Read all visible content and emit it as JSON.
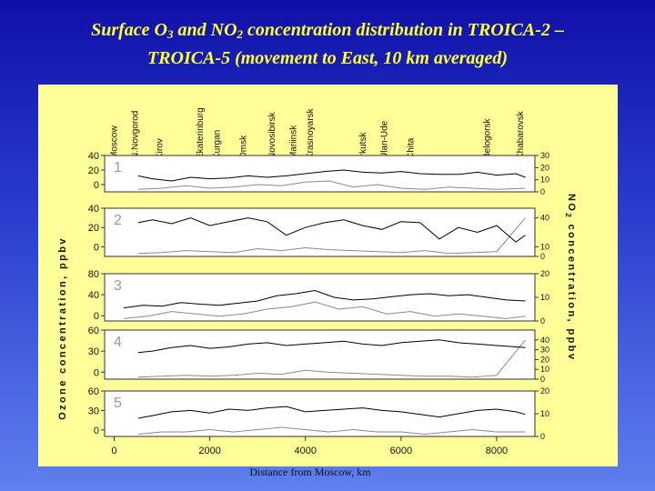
{
  "title": {
    "line1_pre": "Surface O",
    "line1_sub1": "3",
    "line1_mid": " and NO",
    "line1_sub2": "2",
    "line1_post": " concentration distribution in TROICA-2 –",
    "line2": "TROICA-5 (movement to East, 10 km averaged)"
  },
  "chart_data": {
    "type": "line",
    "xlabel": "Distance from Moscow, km",
    "ylabel_left": "Ozone concentration, ppbv",
    "ylabel_right_pre": "NO",
    "ylabel_right_sub": "2",
    "ylabel_right_post": " concentration, ppbv",
    "xlim": [
      -200,
      8800
    ],
    "xticks": [
      0,
      2000,
      4000,
      6000,
      8000
    ],
    "cities": [
      {
        "name": "Moscow",
        "x": 0
      },
      {
        "name": "N.Novgorod",
        "x": 440
      },
      {
        "name": "Kirov",
        "x": 950
      },
      {
        "name": "Ekaterinburg",
        "x": 1800
      },
      {
        "name": "Kurgan",
        "x": 2150
      },
      {
        "name": "Omsk",
        "x": 2700
      },
      {
        "name": "Novosibirsk",
        "x": 3300
      },
      {
        "name": "Mariinsk",
        "x": 3750
      },
      {
        "name": "Krasnoyarsk",
        "x": 4100
      },
      {
        "name": "Irkutsk",
        "x": 5200
      },
      {
        "name": "Ulan-Ude",
        "x": 5650
      },
      {
        "name": "Chita",
        "x": 6200
      },
      {
        "name": "Belogorsk",
        "x": 7800
      },
      {
        "name": "Khabarovsk",
        "x": 8500
      }
    ],
    "panels": [
      {
        "label": "1",
        "ozone_ylim": [
          -10,
          40
        ],
        "ozone_ticks": [
          0,
          20,
          40
        ],
        "no2_ylim": [
          0,
          30
        ],
        "no2_ticks": [
          0,
          10,
          20,
          30
        ],
        "ozone_x": [
          500,
          800,
          1200,
          1600,
          2000,
          2400,
          2800,
          3200,
          3600,
          4000,
          4400,
          4800,
          5200,
          5600,
          6000,
          6400,
          6800,
          7200,
          7600,
          8000,
          8400,
          8600
        ],
        "ozone": [
          12,
          8,
          5,
          10,
          8,
          9,
          12,
          10,
          12,
          15,
          18,
          20,
          17,
          16,
          18,
          15,
          14,
          14,
          17,
          13,
          15,
          10
        ],
        "no2_x": [
          500,
          1000,
          1500,
          2000,
          2500,
          3000,
          3500,
          4000,
          4500,
          5000,
          5500,
          6000,
          6500,
          7000,
          7500,
          8000,
          8600
        ],
        "no2": [
          2,
          3,
          5,
          3,
          4,
          6,
          5,
          8,
          9,
          4,
          6,
          3,
          2,
          4,
          3,
          2,
          3
        ]
      },
      {
        "label": "2",
        "ozone_ylim": [
          -10,
          40
        ],
        "ozone_ticks": [
          0,
          20,
          40
        ],
        "no2_ylim": [
          0,
          50
        ],
        "no2_ticks": [
          0,
          10,
          40
        ],
        "ozone_x": [
          500,
          800,
          1200,
          1600,
          2000,
          2400,
          2800,
          3200,
          3600,
          4000,
          4400,
          4800,
          5200,
          5600,
          6000,
          6400,
          6800,
          7200,
          7600,
          8000,
          8400,
          8600
        ],
        "ozone": [
          25,
          28,
          24,
          30,
          22,
          26,
          30,
          26,
          12,
          20,
          25,
          28,
          22,
          18,
          26,
          25,
          8,
          20,
          15,
          22,
          5,
          12
        ],
        "no2_x": [
          500,
          1000,
          1500,
          2000,
          2500,
          3000,
          3500,
          4000,
          4500,
          5000,
          5500,
          6000,
          6500,
          7000,
          7500,
          8000,
          8600
        ],
        "no2": [
          3,
          4,
          6,
          5,
          4,
          8,
          6,
          9,
          7,
          6,
          5,
          4,
          6,
          3,
          4,
          5,
          40
        ]
      },
      {
        "label": "3",
        "ozone_ylim": [
          -10,
          80
        ],
        "ozone_ticks": [
          0,
          40,
          80
        ],
        "no2_ylim": [
          0,
          20
        ],
        "no2_ticks": [
          0,
          10,
          20
        ],
        "ozone_x": [
          200,
          600,
          1000,
          1400,
          1800,
          2200,
          2600,
          3000,
          3400,
          3800,
          4200,
          4600,
          5000,
          5400,
          5800,
          6200,
          6600,
          7000,
          7400,
          7800,
          8200,
          8600
        ],
        "ozone": [
          15,
          20,
          18,
          25,
          22,
          20,
          24,
          28,
          38,
          42,
          48,
          35,
          30,
          32,
          36,
          40,
          42,
          38,
          40,
          35,
          30,
          28
        ],
        "no2_x": [
          200,
          700,
          1200,
          1700,
          2200,
          2700,
          3200,
          3700,
          4200,
          4700,
          5200,
          5700,
          6200,
          6700,
          7200,
          7700,
          8200,
          8600
        ],
        "no2": [
          1,
          2,
          4,
          3,
          2,
          3,
          5,
          6,
          8,
          5,
          6,
          3,
          4,
          2,
          3,
          2,
          1,
          2
        ]
      },
      {
        "label": "4",
        "ozone_ylim": [
          -10,
          60
        ],
        "ozone_ticks": [
          0,
          30,
          60
        ],
        "no2_ylim": [
          0,
          50
        ],
        "no2_ticks": [
          0,
          10,
          20,
          30,
          40
        ],
        "ozone_x": [
          500,
          800,
          1200,
          1600,
          2000,
          2400,
          2800,
          3200,
          3600,
          4000,
          4400,
          4800,
          5200,
          5600,
          6000,
          6400,
          6800,
          7200,
          7600,
          8000,
          8400,
          8600
        ],
        "ozone": [
          28,
          30,
          35,
          38,
          34,
          36,
          40,
          42,
          38,
          40,
          42,
          44,
          40,
          38,
          42,
          44,
          46,
          42,
          40,
          38,
          36,
          35
        ],
        "no2_x": [
          500,
          1000,
          1500,
          2000,
          2500,
          3000,
          3500,
          4000,
          4500,
          5000,
          5500,
          6000,
          6500,
          7000,
          7500,
          8000,
          8600
        ],
        "no2": [
          2,
          3,
          4,
          3,
          4,
          6,
          5,
          9,
          7,
          6,
          5,
          4,
          3,
          3,
          2,
          4,
          40
        ]
      },
      {
        "label": "5",
        "ozone_ylim": [
          -10,
          60
        ],
        "ozone_ticks": [
          0,
          30,
          60
        ],
        "no2_ylim": [
          0,
          20
        ],
        "no2_ticks": [
          0,
          10,
          20
        ],
        "ozone_x": [
          500,
          800,
          1200,
          1600,
          2000,
          2400,
          2800,
          3200,
          3600,
          4000,
          4400,
          4800,
          5200,
          5600,
          6000,
          6400,
          6800,
          7200,
          7600,
          8000,
          8400,
          8600
        ],
        "ozone": [
          18,
          22,
          28,
          30,
          26,
          32,
          30,
          34,
          36,
          28,
          30,
          32,
          34,
          30,
          28,
          24,
          20,
          25,
          30,
          32,
          28,
          24
        ],
        "no2_x": [
          500,
          1000,
          1500,
          2000,
          2500,
          3000,
          3500,
          4000,
          4500,
          5000,
          5500,
          6000,
          6500,
          7000,
          7500,
          8000,
          8600
        ],
        "no2": [
          1,
          2,
          2,
          3,
          2,
          3,
          4,
          3,
          2,
          3,
          2,
          2,
          1,
          2,
          3,
          2,
          2
        ]
      }
    ]
  }
}
